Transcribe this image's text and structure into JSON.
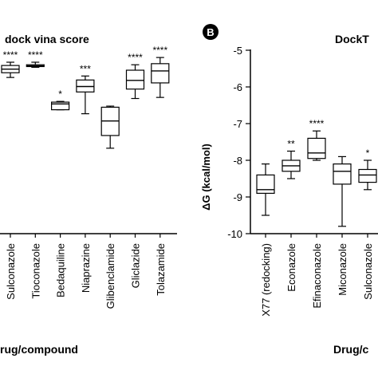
{
  "chart_data": [
    {
      "panel_label": "",
      "title": "dock vina score",
      "type": "box",
      "xlabel": "rug/compound",
      "ylabel": "",
      "categories": [
        "Sulconazole",
        "Tioconazole",
        "Bedaquiline",
        "Niaprazine",
        "Glibenclamide",
        "Gliclazide",
        "Tolazamide"
      ],
      "significance": [
        "****",
        "****",
        "*",
        "***",
        "",
        "****",
        "****"
      ],
      "boxes": [
        {
          "min": -8.75,
          "q1": -8.62,
          "median": -8.52,
          "q3": -8.42,
          "max": -8.33
        },
        {
          "min": -8.47,
          "q1": -8.45,
          "median": -8.43,
          "q3": -8.4,
          "max": -8.33
        },
        {
          "min": -9.64,
          "q1": -9.64,
          "median": -9.48,
          "q3": -9.43,
          "max": -9.41
        },
        {
          "min": -9.75,
          "q1": -9.15,
          "median": -9.0,
          "q3": -8.82,
          "max": -8.71
        },
        {
          "min": -10.7,
          "q1": -10.35,
          "median": -9.95,
          "q3": -9.57,
          "max": -9.54
        },
        {
          "min": -9.33,
          "q1": -9.07,
          "median": -8.83,
          "q3": -8.55,
          "max": -8.4
        },
        {
          "min": -9.3,
          "q1": -8.9,
          "median": -8.57,
          "q3": -8.37,
          "max": -8.2
        }
      ]
    },
    {
      "panel_label": "B",
      "title": "DockT",
      "type": "box",
      "xlabel": "Drug/c",
      "ylabel": "ΔG (kcal/mol)",
      "ylim": [
        -10,
        -5
      ],
      "yticks": [
        "-5",
        "-6",
        "-7",
        "-8",
        "-9",
        "-10"
      ],
      "categories": [
        "X77 (redocking)",
        "Econazole",
        "Efinaconazole",
        "Miconazole",
        "Sulconazole"
      ],
      "significance": [
        "",
        "**",
        "****",
        "",
        "*"
      ],
      "boxes": [
        {
          "min": -9.5,
          "q1": -8.9,
          "median": -8.8,
          "q3": -8.4,
          "max": -8.1
        },
        {
          "min": -8.5,
          "q1": -8.3,
          "median": -8.15,
          "q3": -8.0,
          "max": -7.75
        },
        {
          "min": -8.0,
          "q1": -7.95,
          "median": -7.8,
          "q3": -7.4,
          "max": -7.2
        },
        {
          "min": -9.8,
          "q1": -8.65,
          "median": -8.3,
          "q3": -8.1,
          "max": -7.9
        },
        {
          "min": -8.8,
          "q1": -8.6,
          "median": -8.4,
          "q3": -8.25,
          "max": -8.0
        }
      ]
    }
  ]
}
